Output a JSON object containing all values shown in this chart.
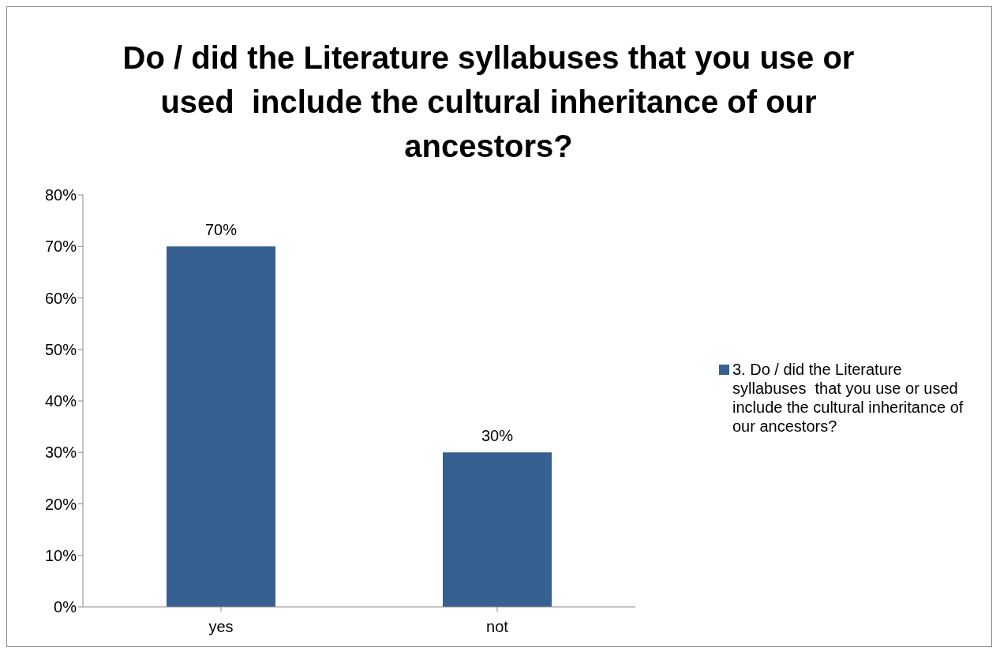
{
  "chart_data": {
    "type": "bar",
    "title": "Do / did the Literature syllabuses that you use or used  include the cultural inheritance of our ancestors?",
    "categories": [
      "yes",
      "not"
    ],
    "series": [
      {
        "name": "3. Do / did the Literature syllabuses  that you use or used include the cultural inheritance of our ancestors?",
        "color": "#376092",
        "values": [
          70,
          30
        ],
        "value_labels": [
          "70%",
          "30%"
        ]
      }
    ],
    "ylim": [
      0,
      80
    ],
    "yticks": [
      {
        "value": 0,
        "label": "0%"
      },
      {
        "value": 10,
        "label": "10%"
      },
      {
        "value": 20,
        "label": "20%"
      },
      {
        "value": 30,
        "label": "30%"
      },
      {
        "value": 40,
        "label": "40%"
      },
      {
        "value": 50,
        "label": "50%"
      },
      {
        "value": 60,
        "label": "60%"
      },
      {
        "value": 70,
        "label": "70%"
      },
      {
        "value": 80,
        "label": "80%"
      }
    ],
    "grid": false,
    "legend": "right"
  }
}
